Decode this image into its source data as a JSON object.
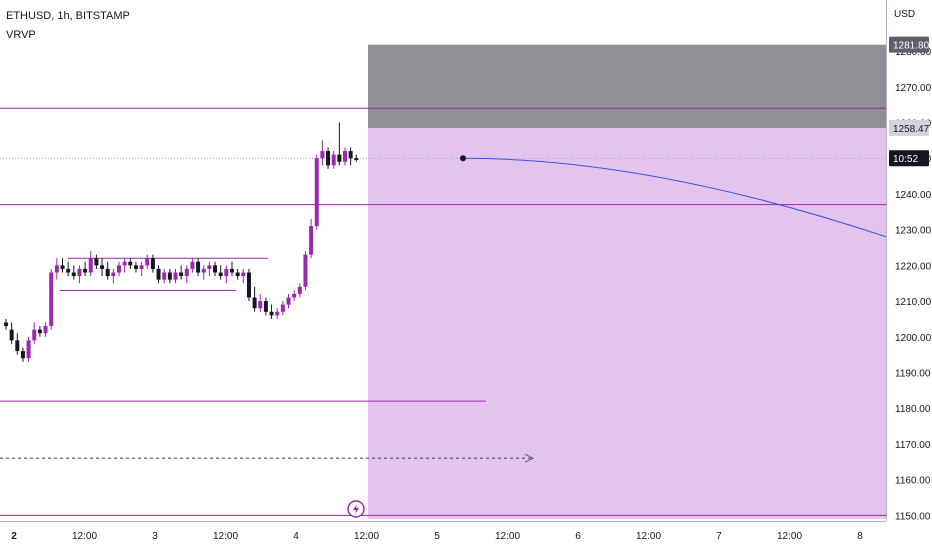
{
  "chart_data": {
    "type": "candlestick",
    "symbol": "ETHUSD, 1h, BITSTAMP",
    "indicator": "VRVP",
    "currency": "USD",
    "ylim": [
      1148,
      1290
    ],
    "y_ticks": [
      1150,
      1160,
      1170,
      1180,
      1190,
      1200,
      1210,
      1220,
      1230,
      1240,
      1250,
      1260,
      1270,
      1280
    ],
    "x_ticks": [
      {
        "label": "2",
        "bold": true
      },
      {
        "label": "12:00",
        "bold": false
      },
      {
        "label": "3",
        "bold": false
      },
      {
        "label": "12:00",
        "bold": false
      },
      {
        "label": "4",
        "bold": false
      },
      {
        "label": "12:00",
        "bold": false
      },
      {
        "label": "5",
        "bold": false
      },
      {
        "label": "12:00",
        "bold": false
      },
      {
        "label": "6",
        "bold": false
      },
      {
        "label": "12:00",
        "bold": false
      },
      {
        "label": "7",
        "bold": false
      },
      {
        "label": "12:00",
        "bold": false
      },
      {
        "label": "8",
        "bold": false
      }
    ],
    "badges": [
      {
        "label": "1281.80",
        "value": 1281.8,
        "style": "dark"
      },
      {
        "label": "1258.47",
        "value": 1258.47,
        "style": "light"
      },
      {
        "label": "10:52",
        "value": 1250,
        "style": "black"
      }
    ],
    "candles": [
      [
        1204,
        1205,
        1202,
        1203
      ],
      [
        1202,
        1204,
        1198,
        1199
      ],
      [
        1199,
        1201,
        1195,
        1196
      ],
      [
        1196,
        1197,
        1193,
        1194
      ],
      [
        1194,
        1200,
        1193,
        1199
      ],
      [
        1199,
        1204,
        1198,
        1202
      ],
      [
        1202,
        1203,
        1200,
        1201
      ],
      [
        1201,
        1204,
        1200,
        1203
      ],
      [
        1203,
        1219,
        1202,
        1218
      ],
      [
        1218,
        1222,
        1216,
        1220
      ],
      [
        1220,
        1222,
        1218,
        1219
      ],
      [
        1219,
        1221,
        1217,
        1218
      ],
      [
        1218,
        1220,
        1216,
        1217
      ],
      [
        1217,
        1220,
        1215,
        1219
      ],
      [
        1219,
        1221,
        1217,
        1218
      ],
      [
        1218,
        1224,
        1217,
        1222
      ],
      [
        1222,
        1223,
        1219,
        1220
      ],
      [
        1220,
        1222,
        1217,
        1219
      ],
      [
        1219,
        1221,
        1216,
        1217
      ],
      [
        1217,
        1219,
        1215,
        1218
      ],
      [
        1218,
        1221,
        1217,
        1220
      ],
      [
        1220,
        1222,
        1218,
        1221
      ],
      [
        1221,
        1222,
        1219,
        1220
      ],
      [
        1220,
        1221,
        1218,
        1219
      ],
      [
        1219,
        1221,
        1217,
        1220
      ],
      [
        1220,
        1223,
        1219,
        1222
      ],
      [
        1222,
        1223,
        1218,
        1219
      ],
      [
        1219,
        1220,
        1215,
        1216
      ],
      [
        1216,
        1219,
        1215,
        1218
      ],
      [
        1218,
        1219,
        1215,
        1216
      ],
      [
        1216,
        1219,
        1215,
        1218
      ],
      [
        1218,
        1220,
        1216,
        1217
      ],
      [
        1217,
        1220,
        1215,
        1219
      ],
      [
        1219,
        1222,
        1218,
        1221
      ],
      [
        1221,
        1222,
        1217,
        1218
      ],
      [
        1218,
        1220,
        1216,
        1219
      ],
      [
        1219,
        1221,
        1217,
        1220
      ],
      [
        1220,
        1221,
        1217,
        1218
      ],
      [
        1218,
        1220,
        1216,
        1217
      ],
      [
        1217,
        1220,
        1215,
        1219
      ],
      [
        1219,
        1221,
        1217,
        1218
      ],
      [
        1218,
        1219,
        1216,
        1217
      ],
      [
        1217,
        1219,
        1215,
        1218
      ],
      [
        1218,
        1219,
        1210,
        1211
      ],
      [
        1211,
        1214,
        1207,
        1208
      ],
      [
        1208,
        1212,
        1207,
        1210
      ],
      [
        1210,
        1211,
        1206,
        1207
      ],
      [
        1207,
        1209,
        1205,
        1206
      ],
      [
        1206,
        1208,
        1205,
        1207
      ],
      [
        1207,
        1210,
        1206,
        1209
      ],
      [
        1209,
        1212,
        1208,
        1211
      ],
      [
        1211,
        1213,
        1210,
        1212
      ],
      [
        1212,
        1215,
        1211,
        1214
      ],
      [
        1214,
        1224,
        1213,
        1223
      ],
      [
        1223,
        1233,
        1222,
        1231
      ],
      [
        1231,
        1251,
        1230,
        1250
      ],
      [
        1250,
        1255,
        1248,
        1252
      ],
      [
        1252,
        1253,
        1247,
        1248
      ],
      [
        1248,
        1252,
        1247,
        1251
      ],
      [
        1251,
        1260,
        1248,
        1249
      ],
      [
        1249,
        1253,
        1248,
        1252
      ],
      [
        1252,
        1253,
        1248,
        1250
      ],
      [
        1250,
        1251,
        1249,
        1249.5
      ]
    ],
    "annotations": {
      "box_upper_range": [
        1258.47,
        1281.8
      ],
      "box_lower_range": [
        1149,
        1258.47
      ],
      "hline_1": 1264,
      "hline_2": 1250,
      "hline_3": 1237,
      "hline_4": 1182,
      "hline_5": 1150,
      "range_top": 1222,
      "range_bottom": 1213,
      "dotted_arrow": 1166,
      "curve_start": 1250,
      "curve_end": 1228
    }
  },
  "colors": {
    "bull": "#9c27b0",
    "bear": "#131722",
    "upper_box": "#8f9094",
    "lower_box": "#e3c4ee",
    "hline": "#9c27b0",
    "curve": "#3f51e0",
    "dotted": "#5d606b"
  }
}
